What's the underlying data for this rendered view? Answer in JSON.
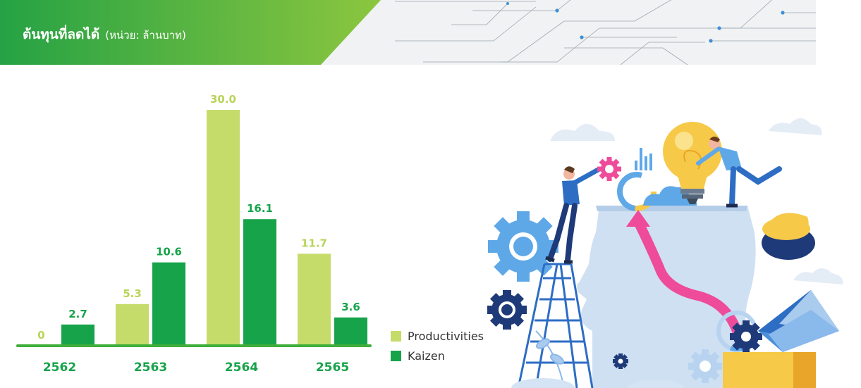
{
  "header": {
    "title": "ต้นทุนที่ลดได้",
    "subtitle": "(หน่วย: ล้านบาท)"
  },
  "colors": {
    "productivities": "#c5dc6a",
    "kaizen": "#16a34a",
    "axis": "#3fae3a",
    "label_light": "#b8d45a",
    "label_dark": "#16a34a",
    "header_gradient_start": "#25a244",
    "header_gradient_end": "#8cc63f"
  },
  "chart_data": {
    "type": "bar",
    "categories": [
      "2562",
      "2563",
      "2564",
      "2565"
    ],
    "series": [
      {
        "name": "Productivities",
        "values": [
          0,
          5.3,
          30.0,
          11.7
        ],
        "labels": [
          "0",
          "5.3",
          "30.0",
          "11.7"
        ]
      },
      {
        "name": "Kaizen",
        "values": [
          2.7,
          10.6,
          16.1,
          3.6
        ],
        "labels": [
          "2.7",
          "10.6",
          "16.1",
          "3.6"
        ]
      }
    ],
    "ylim": [
      0,
      30
    ],
    "legend_position": "right",
    "grid": false
  },
  "illustration": {
    "icons": [
      "head-silhouette-icon",
      "light-bulb-icon",
      "gear-icon",
      "ladder-icon",
      "envelope-icon",
      "pie-chart-icon",
      "bar-chart-icon",
      "arrow-up-icon",
      "cloud-icon"
    ]
  }
}
